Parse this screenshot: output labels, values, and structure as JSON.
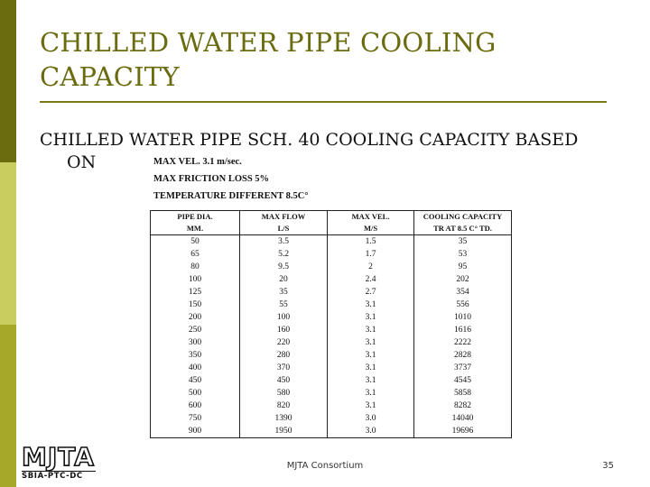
{
  "slide": {
    "title": "CHILLED WATER PIPE COOLING CAPACITY",
    "subtitle_line1": "CHILLED WATER PIPE SCH. 40 COOLING CAPACITY BASED",
    "subtitle_line2": "ON",
    "notes": [
      "MAX VEL. 3.1 m/sec.",
      "MAX FRICTION LOSS 5%",
      "TEMPERATURE DIFFERENT 8.5C°"
    ]
  },
  "table": {
    "headers_row1": [
      "PIPE DIA.",
      "MAX FLOW",
      "MAX VEL.",
      "COOLING CAPACITY"
    ],
    "headers_row2": [
      "MM.",
      "L/S",
      "M/S",
      "TR AT 8.5 C° TD."
    ],
    "rows": [
      [
        "50",
        "3.5",
        "1.5",
        "35"
      ],
      [
        "65",
        "5.2",
        "1.7",
        "53"
      ],
      [
        "80",
        "9.5",
        "2",
        "95"
      ],
      [
        "100",
        "20",
        "2.4",
        "202"
      ],
      [
        "125",
        "35",
        "2.7",
        "354"
      ],
      [
        "150",
        "55",
        "3.1",
        "556"
      ],
      [
        "200",
        "100",
        "3.1",
        "1010"
      ],
      [
        "250",
        "160",
        "3.1",
        "1616"
      ],
      [
        "300",
        "220",
        "3.1",
        "2222"
      ],
      [
        "350",
        "280",
        "3.1",
        "2828"
      ],
      [
        "400",
        "370",
        "3.1",
        "3737"
      ],
      [
        "450",
        "450",
        "3.1",
        "4545"
      ],
      [
        "500",
        "580",
        "3.1",
        "5858"
      ],
      [
        "600",
        "820",
        "3.1",
        "8282"
      ],
      [
        "750",
        "1390",
        "3.0",
        "14040"
      ],
      [
        "900",
        "1950",
        "3.0",
        "19696"
      ]
    ]
  },
  "footer": {
    "logo_text": "MJTA",
    "logo_subtext": "SBIA-PTC-DC",
    "center_text": "MJTA Consortium",
    "page_number": "35"
  },
  "colors": {
    "title": "#6b6b10",
    "sidebar_dark": "#6b6b10",
    "sidebar_light": "#c9cc5e",
    "sidebar_mid": "#a6a82a"
  }
}
